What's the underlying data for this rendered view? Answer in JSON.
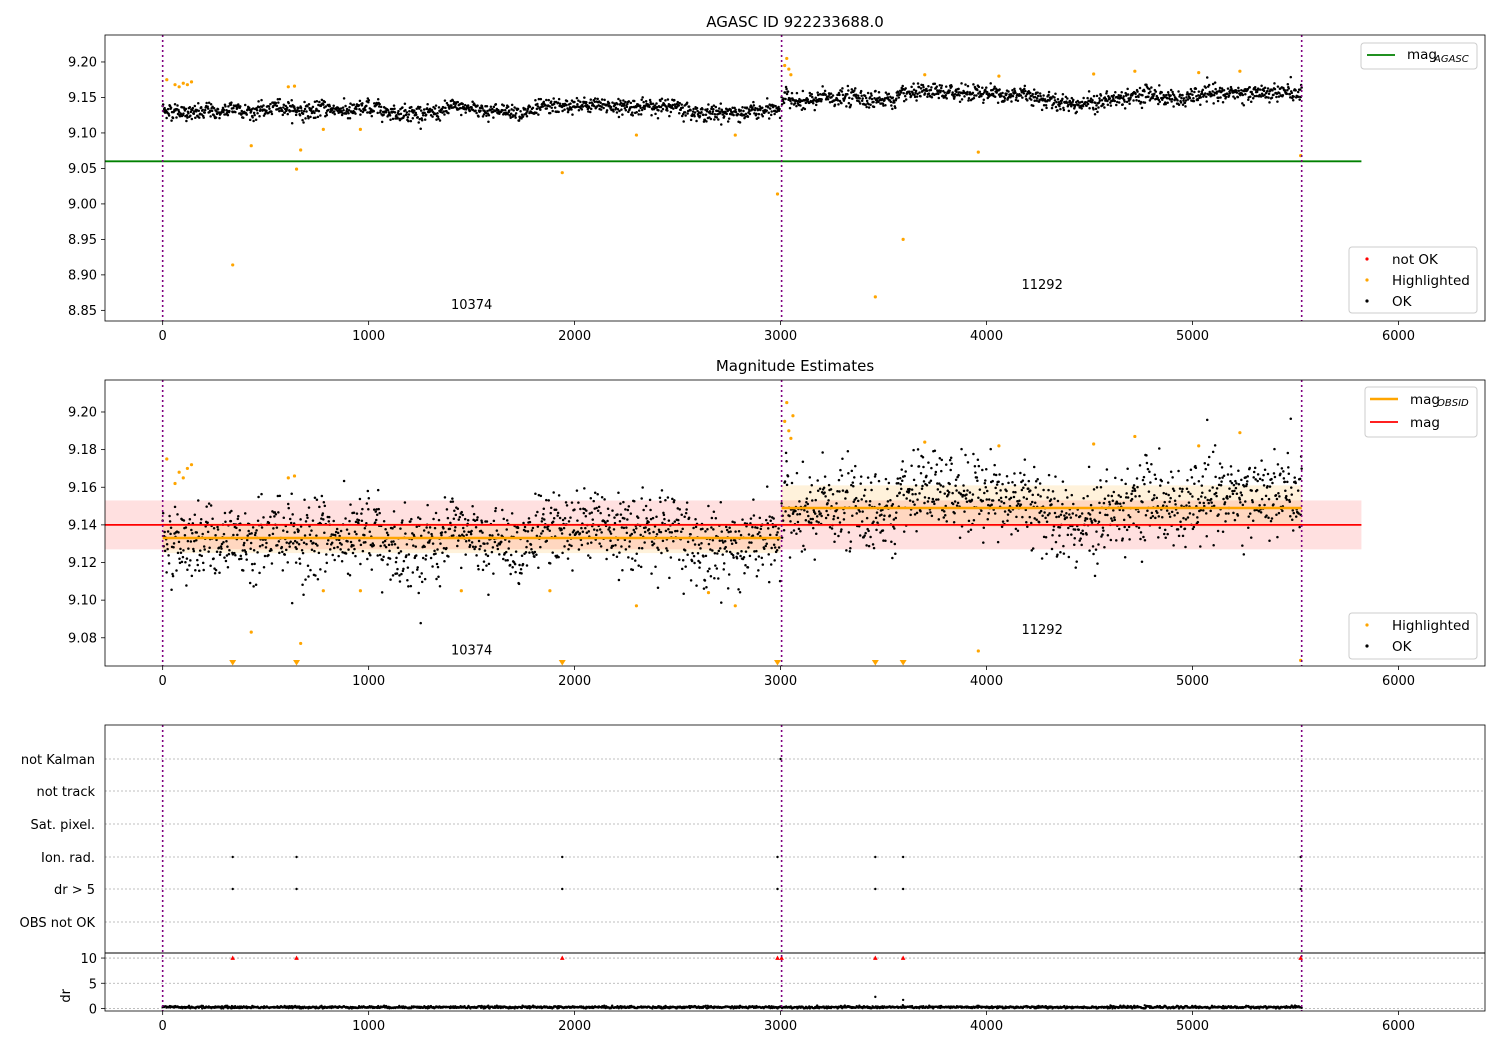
{
  "chart_data": [
    {
      "type": "scatter",
      "title": "AGASC ID 922233688.0",
      "xlim": [
        -280,
        6420
      ],
      "ylim": [
        8.835,
        9.238
      ],
      "xticks": [
        0,
        1000,
        2000,
        3000,
        4000,
        5000,
        6000
      ],
      "yticks": [
        8.85,
        8.9,
        8.95,
        9.0,
        9.05,
        9.1,
        9.15,
        9.2
      ],
      "ytick_labels": [
        "8.85",
        "8.90",
        "8.95",
        "9.00",
        "9.05",
        "9.10",
        "9.15",
        "9.20"
      ],
      "vlines": [
        0,
        3005,
        5530
      ],
      "mag_agasc": {
        "value": 9.06,
        "x": [
          -280,
          5820
        ]
      },
      "obsid_labels": [
        {
          "text": "10374",
          "x": 1500,
          "y": 8.852
        },
        {
          "text": "11292",
          "x": 4270,
          "y": 8.88
        }
      ],
      "legend_top": {
        "label": "mag",
        "sub": "AGASC",
        "color": "#008000"
      },
      "legend_bottom": [
        {
          "label": "not OK",
          "color": "#ff0000"
        },
        {
          "label": "Highlighted",
          "color": "#ffa500"
        },
        {
          "label": "OK",
          "color": "#000000"
        }
      ],
      "segments": [
        {
          "x0": 0,
          "x1": 3000,
          "level": 9.133,
          "spread": 0.01,
          "wander": 0.005
        },
        {
          "x0": 3005,
          "x1": 5530,
          "level": 9.149,
          "spread": 0.011,
          "wander": 0.008
        }
      ],
      "highlighted": [
        {
          "x": 340,
          "y": 8.914
        },
        {
          "x": 430,
          "y": 9.082
        },
        {
          "x": 650,
          "y": 9.049
        },
        {
          "x": 670,
          "y": 9.076
        },
        {
          "x": 780,
          "y": 9.105
        },
        {
          "x": 960,
          "y": 9.105
        },
        {
          "x": 1940,
          "y": 9.044
        },
        {
          "x": 2300,
          "y": 9.097
        },
        {
          "x": 2780,
          "y": 9.097
        },
        {
          "x": 2985,
          "y": 9.014
        },
        {
          "x": 3460,
          "y": 8.869
        },
        {
          "x": 3595,
          "y": 8.95
        },
        {
          "x": 3960,
          "y": 9.073
        },
        {
          "x": 5525,
          "y": 9.068
        },
        {
          "x": 20,
          "y": 9.175
        },
        {
          "x": 60,
          "y": 9.168
        },
        {
          "x": 80,
          "y": 9.165
        },
        {
          "x": 100,
          "y": 9.17
        },
        {
          "x": 120,
          "y": 9.168
        },
        {
          "x": 140,
          "y": 9.172
        },
        {
          "x": 610,
          "y": 9.165
        },
        {
          "x": 640,
          "y": 9.166
        },
        {
          "x": 3020,
          "y": 9.195
        },
        {
          "x": 3030,
          "y": 9.205
        },
        {
          "x": 3040,
          "y": 9.19
        },
        {
          "x": 3050,
          "y": 9.182
        },
        {
          "x": 3700,
          "y": 9.182
        },
        {
          "x": 4060,
          "y": 9.18
        },
        {
          "x": 4520,
          "y": 9.183
        },
        {
          "x": 4720,
          "y": 9.187
        },
        {
          "x": 5030,
          "y": 9.185
        },
        {
          "x": 5230,
          "y": 9.187
        }
      ],
      "not_ok": []
    },
    {
      "type": "scatter",
      "title": "Magnitude Estimates",
      "xlim": [
        -280,
        6420
      ],
      "ylim": [
        9.065,
        9.217
      ],
      "xticks": [
        0,
        1000,
        2000,
        3000,
        4000,
        5000,
        6000
      ],
      "yticks": [
        9.08,
        9.1,
        9.12,
        9.14,
        9.16,
        9.18,
        9.2
      ],
      "ytick_labels": [
        "9.08",
        "9.10",
        "9.12",
        "9.14",
        "9.16",
        "9.18",
        "9.20"
      ],
      "vlines": [
        0,
        3005,
        5530
      ],
      "mag": {
        "value": 9.14,
        "band": [
          9.127,
          9.153
        ],
        "x": [
          -280,
          5820
        ]
      },
      "mag_obsid": [
        {
          "x0": 0,
          "x1": 3000,
          "value": 9.133,
          "band": [
            9.125,
            9.141
          ]
        },
        {
          "x0": 3005,
          "x1": 5530,
          "value": 9.149,
          "band": [
            9.139,
            9.161
          ]
        }
      ],
      "obsid_labels": [
        {
          "text": "10374",
          "x": 1500,
          "y": 9.071
        },
        {
          "text": "11292",
          "x": 4270,
          "y": 9.082
        }
      ],
      "legend_top": [
        {
          "label": "mag",
          "sub": "OBSID",
          "color": "#ffa500"
        },
        {
          "label": "mag",
          "sub": "",
          "color": "#ff0000"
        }
      ],
      "legend_bottom": [
        {
          "label": "Highlighted",
          "color": "#ffa500"
        },
        {
          "label": "OK",
          "color": "#000000"
        }
      ],
      "segments": [
        {
          "x0": 0,
          "x1": 3000,
          "level": 9.133,
          "spread": 0.01,
          "wander": 0.005
        },
        {
          "x0": 3005,
          "x1": 5530,
          "level": 9.149,
          "spread": 0.011,
          "wander": 0.008
        }
      ],
      "highlighted": [
        {
          "x": 430,
          "y": 9.083
        },
        {
          "x": 670,
          "y": 9.077
        },
        {
          "x": 780,
          "y": 9.105
        },
        {
          "x": 960,
          "y": 9.105
        },
        {
          "x": 1450,
          "y": 9.105
        },
        {
          "x": 1880,
          "y": 9.105
        },
        {
          "x": 2300,
          "y": 9.097
        },
        {
          "x": 2650,
          "y": 9.104
        },
        {
          "x": 2780,
          "y": 9.097
        },
        {
          "x": 3960,
          "y": 9.073
        },
        {
          "x": 5525,
          "y": 9.068
        },
        {
          "x": 20,
          "y": 9.175
        },
        {
          "x": 60,
          "y": 9.162
        },
        {
          "x": 80,
          "y": 9.168
        },
        {
          "x": 100,
          "y": 9.165
        },
        {
          "x": 120,
          "y": 9.17
        },
        {
          "x": 140,
          "y": 9.172
        },
        {
          "x": 610,
          "y": 9.165
        },
        {
          "x": 640,
          "y": 9.166
        },
        {
          "x": 3020,
          "y": 9.195
        },
        {
          "x": 3030,
          "y": 9.205
        },
        {
          "x": 3040,
          "y": 9.19
        },
        {
          "x": 3050,
          "y": 9.186
        },
        {
          "x": 3060,
          "y": 9.198
        },
        {
          "x": 3700,
          "y": 9.184
        },
        {
          "x": 4060,
          "y": 9.182
        },
        {
          "x": 4520,
          "y": 9.183
        },
        {
          "x": 4720,
          "y": 9.187
        },
        {
          "x": 5030,
          "y": 9.182
        },
        {
          "x": 5230,
          "y": 9.189
        }
      ],
      "clipped": [
        340,
        650,
        1940,
        2985,
        3460,
        3595
      ]
    },
    {
      "type": "scatter",
      "title": "",
      "xlim": [
        -280,
        6420
      ],
      "xticks": [
        0,
        1000,
        2000,
        3000,
        4000,
        5000,
        6000
      ],
      "vlines": [
        0,
        3005,
        5530
      ],
      "flag_labels": [
        "not Kalman",
        "not track",
        "Sat. pixel.",
        "Ion. rad.",
        "dr > 5",
        "OBS not OK"
      ],
      "flags": {
        "not Kalman": [
          3000
        ],
        "not track": [],
        "Sat. pixel.": [],
        "Ion. rad.": [
          340,
          650,
          1940,
          2985,
          3460,
          3595,
          5525
        ],
        "dr > 5": [
          340,
          650,
          1940,
          2985,
          3460,
          3595,
          5525
        ],
        "OBS not OK": []
      },
      "dr": {
        "ylabel": "dr",
        "ylim": [
          -0.5,
          11
        ],
        "yticks": [
          0,
          5,
          10
        ],
        "ytick_labels": [
          "0",
          "5",
          "10"
        ],
        "clipped_marker_value": 10,
        "clipped": [
          340,
          650,
          1940,
          2985,
          3005,
          3460,
          3595,
          5525
        ],
        "outliers": [
          {
            "x": 3460,
            "y": 2.3
          },
          {
            "x": 3595,
            "y": 1.7
          }
        ],
        "baseline": 0.25
      }
    }
  ]
}
